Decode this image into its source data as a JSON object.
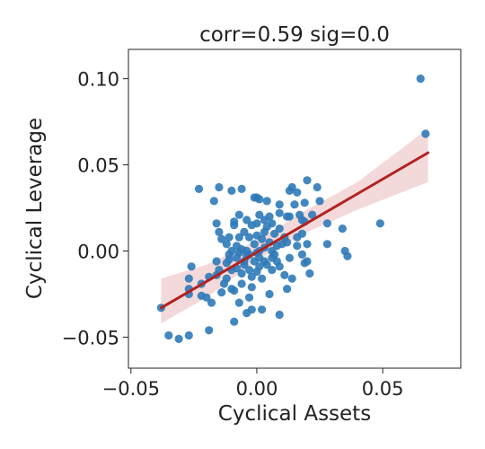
{
  "chart_data": {
    "type": "scatter",
    "title": "corr=0.59 sig=0.0",
    "xlabel": "Cyclical Assets",
    "ylabel": "Cyclical Leverage",
    "xlim": [
      -0.051,
      0.081
    ],
    "ylim": [
      -0.068,
      0.117
    ],
    "xticks": [
      -0.05,
      0.0,
      0.05
    ],
    "xtick_labels": [
      "−0.05",
      "0.00",
      "0.05"
    ],
    "yticks": [
      -0.05,
      0.0,
      0.05,
      0.1
    ],
    "ytick_labels": [
      "−0.05",
      "0.00",
      "0.05",
      "0.10"
    ],
    "grid": false,
    "colors": {
      "points": "#2f7ab8",
      "fit_line": "#b22222",
      "confidence_band": "#e8b4b4"
    },
    "regression": {
      "x": [
        -0.038,
        0.068
      ],
      "y": [
        -0.033,
        0.057
      ],
      "ci_x": [
        -0.038,
        -0.02,
        0.0,
        0.02,
        0.04,
        0.068
      ],
      "ci_lower": [
        -0.042,
        -0.027,
        -0.0055,
        0.011,
        0.024,
        0.04
      ],
      "ci_upper": [
        -0.016,
        -0.008,
        0.0062,
        0.024,
        0.04,
        0.071
      ]
    },
    "points": [
      {
        "x": 0.065,
        "y": 0.1
      },
      {
        "x": 0.067,
        "y": 0.068
      },
      {
        "x": 0.049,
        "y": 0.016
      },
      {
        "x": -0.038,
        "y": -0.033
      },
      {
        "x": -0.035,
        "y": -0.049
      },
      {
        "x": -0.031,
        "y": -0.051
      },
      {
        "x": -0.027,
        "y": -0.049
      },
      {
        "x": -0.019,
        "y": -0.046
      },
      {
        "x": -0.026,
        "y": -0.009
      },
      {
        "x": -0.027,
        "y": -0.016
      },
      {
        "x": -0.027,
        "y": -0.022
      },
      {
        "x": -0.027,
        "y": -0.025
      },
      {
        "x": -0.022,
        "y": -0.019
      },
      {
        "x": -0.022,
        "y": -0.026
      },
      {
        "x": -0.02,
        "y": -0.027
      },
      {
        "x": -0.019,
        "y": -0.015
      },
      {
        "x": -0.018,
        "y": -0.03
      },
      {
        "x": -0.016,
        "y": -0.014
      },
      {
        "x": -0.016,
        "y": -0.006
      },
      {
        "x": -0.015,
        "y": -0.011
      },
      {
        "x": -0.013,
        "y": -0.019
      },
      {
        "x": -0.012,
        "y": -0.016
      },
      {
        "x": -0.012,
        "y": -0.007
      },
      {
        "x": -0.011,
        "y": -0.005
      },
      {
        "x": -0.01,
        "y": -0.022
      },
      {
        "x": -0.01,
        "y": 0.0
      },
      {
        "x": -0.009,
        "y": -0.023
      },
      {
        "x": -0.009,
        "y": -0.041
      },
      {
        "x": -0.008,
        "y": -0.01
      },
      {
        "x": -0.008,
        "y": -0.004
      },
      {
        "x": -0.007,
        "y": -0.001
      },
      {
        "x": -0.006,
        "y": -0.013
      },
      {
        "x": -0.006,
        "y": -0.019
      },
      {
        "x": -0.005,
        "y": -0.006
      },
      {
        "x": -0.005,
        "y": -0.008
      },
      {
        "x": -0.004,
        "y": -0.003
      },
      {
        "x": -0.004,
        "y": -0.036
      },
      {
        "x": -0.003,
        "y": -0.027
      },
      {
        "x": -0.003,
        "y": -0.011
      },
      {
        "x": -0.003,
        "y": -0.002
      },
      {
        "x": -0.002,
        "y": -0.015
      },
      {
        "x": -0.002,
        "y": -0.034
      },
      {
        "x": -0.001,
        "y": -0.006
      },
      {
        "x": 0.0,
        "y": -0.001
      },
      {
        "x": 0.0,
        "y": -0.012
      },
      {
        "x": 0.001,
        "y": -0.004
      },
      {
        "x": 0.001,
        "y": -0.009
      },
      {
        "x": 0.002,
        "y": -0.034
      },
      {
        "x": 0.002,
        "y": -0.016
      },
      {
        "x": 0.003,
        "y": 0.002
      },
      {
        "x": 0.003,
        "y": -0.006
      },
      {
        "x": 0.004,
        "y": -0.008
      },
      {
        "x": 0.005,
        "y": -0.025
      },
      {
        "x": 0.006,
        "y": -0.011
      },
      {
        "x": 0.006,
        "y": 0.0
      },
      {
        "x": 0.007,
        "y": -0.002
      },
      {
        "x": 0.008,
        "y": -0.006
      },
      {
        "x": 0.009,
        "y": -0.009
      },
      {
        "x": 0.009,
        "y": -0.037
      },
      {
        "x": 0.01,
        "y": 0.004
      },
      {
        "x": 0.011,
        "y": -0.014
      },
      {
        "x": 0.012,
        "y": -0.022
      },
      {
        "x": 0.012,
        "y": 0.005
      },
      {
        "x": 0.013,
        "y": -0.004
      },
      {
        "x": 0.014,
        "y": -0.016
      },
      {
        "x": 0.016,
        "y": 0.003
      },
      {
        "x": 0.018,
        "y": -0.002
      },
      {
        "x": 0.018,
        "y": 0.01
      },
      {
        "x": 0.019,
        "y": -0.007
      },
      {
        "x": 0.02,
        "y": 0.004
      },
      {
        "x": 0.02,
        "y": -0.006
      },
      {
        "x": 0.021,
        "y": -0.013
      },
      {
        "x": 0.025,
        "y": 0.029
      },
      {
        "x": 0.028,
        "y": 0.016
      },
      {
        "x": 0.028,
        "y": 0.004
      },
      {
        "x": 0.034,
        "y": 0.013
      },
      {
        "x": 0.035,
        "y": 0.0
      },
      {
        "x": 0.036,
        "y": -0.003
      },
      {
        "x": 0.024,
        "y": 0.037
      },
      {
        "x": 0.02,
        "y": 0.041
      },
      {
        "x": 0.019,
        "y": 0.028
      },
      {
        "x": 0.016,
        "y": 0.034
      },
      {
        "x": 0.015,
        "y": 0.027
      },
      {
        "x": 0.013,
        "y": 0.035
      },
      {
        "x": 0.012,
        "y": 0.02
      },
      {
        "x": 0.009,
        "y": 0.022
      },
      {
        "x": 0.009,
        "y": 0.027
      },
      {
        "x": 0.009,
        "y": 0.013
      },
      {
        "x": 0.008,
        "y": 0.003
      },
      {
        "x": 0.007,
        "y": 0.01
      },
      {
        "x": 0.006,
        "y": 0.016
      },
      {
        "x": 0.005,
        "y": 0.02
      },
      {
        "x": 0.004,
        "y": 0.029
      },
      {
        "x": 0.003,
        "y": 0.018
      },
      {
        "x": 0.003,
        "y": 0.011
      },
      {
        "x": 0.002,
        "y": 0.007
      },
      {
        "x": 0.001,
        "y": 0.03
      },
      {
        "x": 0.001,
        "y": 0.021
      },
      {
        "x": 0.0,
        "y": 0.016
      },
      {
        "x": 0.0,
        "y": 0.009
      },
      {
        "x": 0.0,
        "y": 0.031
      },
      {
        "x": -0.001,
        "y": 0.031
      },
      {
        "x": -0.001,
        "y": 0.004
      },
      {
        "x": -0.002,
        "y": 0.015
      },
      {
        "x": -0.003,
        "y": 0.008
      },
      {
        "x": -0.004,
        "y": 0.018
      },
      {
        "x": -0.004,
        "y": 0.0
      },
      {
        "x": -0.005,
        "y": 0.011
      },
      {
        "x": -0.006,
        "y": 0.036
      },
      {
        "x": -0.007,
        "y": 0.021
      },
      {
        "x": -0.007,
        "y": 0.008
      },
      {
        "x": -0.008,
        "y": 0.003
      },
      {
        "x": -0.009,
        "y": 0.017
      },
      {
        "x": -0.009,
        "y": 0.015
      },
      {
        "x": -0.01,
        "y": 0.035
      },
      {
        "x": -0.011,
        "y": 0.008
      },
      {
        "x": -0.012,
        "y": 0.004
      },
      {
        "x": -0.014,
        "y": 0.007
      },
      {
        "x": -0.015,
        "y": 0.011
      },
      {
        "x": -0.016,
        "y": 0.016
      },
      {
        "x": -0.015,
        "y": 0.037
      },
      {
        "x": -0.017,
        "y": 0.029
      },
      {
        "x": -0.023,
        "y": 0.036
      },
      {
        "x": 0.014,
        "y": 0.037
      },
      {
        "x": 0.013,
        "y": 0.02
      },
      {
        "x": 0.017,
        "y": 0.021
      },
      {
        "x": 0.018,
        "y": 0.018
      },
      {
        "x": 0.022,
        "y": 0.021
      },
      {
        "x": 0.016,
        "y": 0.008
      },
      {
        "x": 0.019,
        "y": 0.017
      },
      {
        "x": 0.004,
        "y": 0.014
      },
      {
        "x": 0.005,
        "y": 0.005
      },
      {
        "x": -0.002,
        "y": -0.021
      },
      {
        "x": -0.007,
        "y": -0.03
      },
      {
        "x": -0.014,
        "y": -0.024
      },
      {
        "x": -0.011,
        "y": -0.002
      },
      {
        "x": -0.01,
        "y": -0.011
      },
      {
        "x": 0.006,
        "y": -0.004
      },
      {
        "x": 0.011,
        "y": 0.008
      },
      {
        "x": 0.001,
        "y": 0.0
      },
      {
        "x": -0.006,
        "y": 0.001
      }
    ]
  }
}
